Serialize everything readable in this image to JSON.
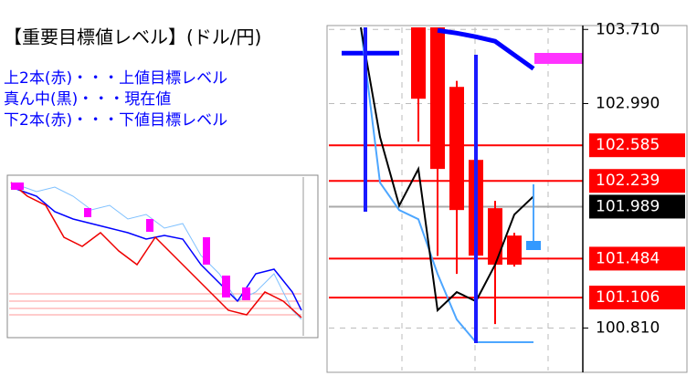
{
  "header": {
    "title": "【重要目標値レベル】(ドル/円)"
  },
  "legend_lines": [
    "上2本(赤)・・・上値目標レベル",
    "真ん中(黒)・・・現在値",
    "下2本(赤)・・・下値目標レベル"
  ],
  "chart_data": {
    "type": "candlestick",
    "categories": [
      null,
      null,
      null,
      null,
      null,
      null,
      null,
      null,
      null,
      null,
      null
    ],
    "open": [
      null,
      null,
      null,
      null,
      103.73,
      103.73,
      103.152,
      102.443,
      101.974,
      101.708,
      null
    ],
    "high": [
      null,
      null,
      null,
      null,
      103.73,
      103.73,
      103.21,
      102.49,
      102.045,
      101.735,
      null
    ],
    "low": [
      null,
      null,
      null,
      null,
      102.62,
      101.51,
      101.336,
      101.25,
      100.849,
      101.407,
      null
    ],
    "close": [
      null,
      null,
      null,
      null,
      103.037,
      102.355,
      101.956,
      101.513,
      101.425,
      101.425,
      null
    ],
    "candle_color": "#ff0000",
    "series": [
      {
        "color": "#0000ff",
        "values": [
          103.48,
          103.48,
          103.48,
          103.48,
          null,
          103.701,
          103.674,
          103.639,
          103.595,
          103.462,
          103.329
        ]
      },
      {
        "color": "#4da6ff",
        "values": [
          null,
          103.73,
          102.222,
          101.956,
          101.867,
          101.336,
          100.893,
          100.672,
          100.672,
          100.672,
          100.672
        ]
      },
      {
        "color": "#000000",
        "values": [
          null,
          103.73,
          102.665,
          101.999,
          102.355,
          100.982,
          101.159,
          101.07,
          101.425,
          101.912,
          102.089
        ]
      }
    ],
    "target_levels": [
      102.585,
      102.239,
      101.484,
      101.106
    ],
    "target_color": "#ff0000",
    "current_value": 101.989,
    "current_color": "#000000",
    "ylim": [
      100.38,
      103.73
    ],
    "yticks": [
      {
        "value": 103.71,
        "label": "103.710"
      },
      {
        "value": 102.99,
        "label": "102.990"
      },
      {
        "value": 100.81,
        "label": "100.810"
      }
    ],
    "grid": true
  }
}
